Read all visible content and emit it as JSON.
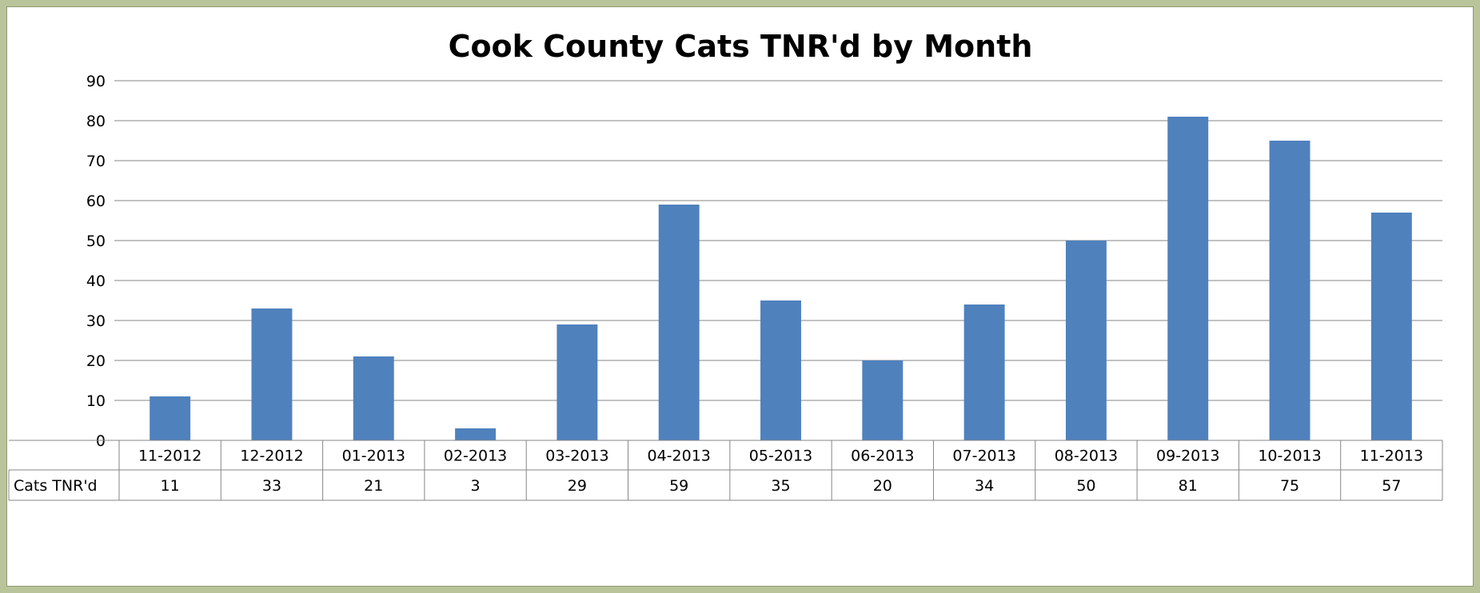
{
  "colors": {
    "page_background": "#b9c49a",
    "bar": "#4f81bd",
    "grid": "#868686",
    "table_border": "#868686"
  },
  "chart_data": {
    "type": "bar",
    "title": "Cook County Cats TNR'd by Month",
    "xlabel": "",
    "ylabel": "",
    "ylim": [
      0,
      90
    ],
    "y_ticks": [
      0,
      10,
      20,
      30,
      40,
      50,
      60,
      70,
      80,
      90
    ],
    "grid": true,
    "legend": "none",
    "data_table": true,
    "categories": [
      "11-2012",
      "12-2012",
      "01-2013",
      "02-2013",
      "03-2013",
      "04-2013",
      "05-2013",
      "06-2013",
      "07-2013",
      "08-2013",
      "09-2013",
      "10-2013",
      "11-2013"
    ],
    "series": [
      {
        "name": "Cats TNR'd",
        "values": [
          11,
          33,
          21,
          3,
          29,
          59,
          35,
          20,
          34,
          50,
          81,
          75,
          57
        ]
      }
    ]
  }
}
